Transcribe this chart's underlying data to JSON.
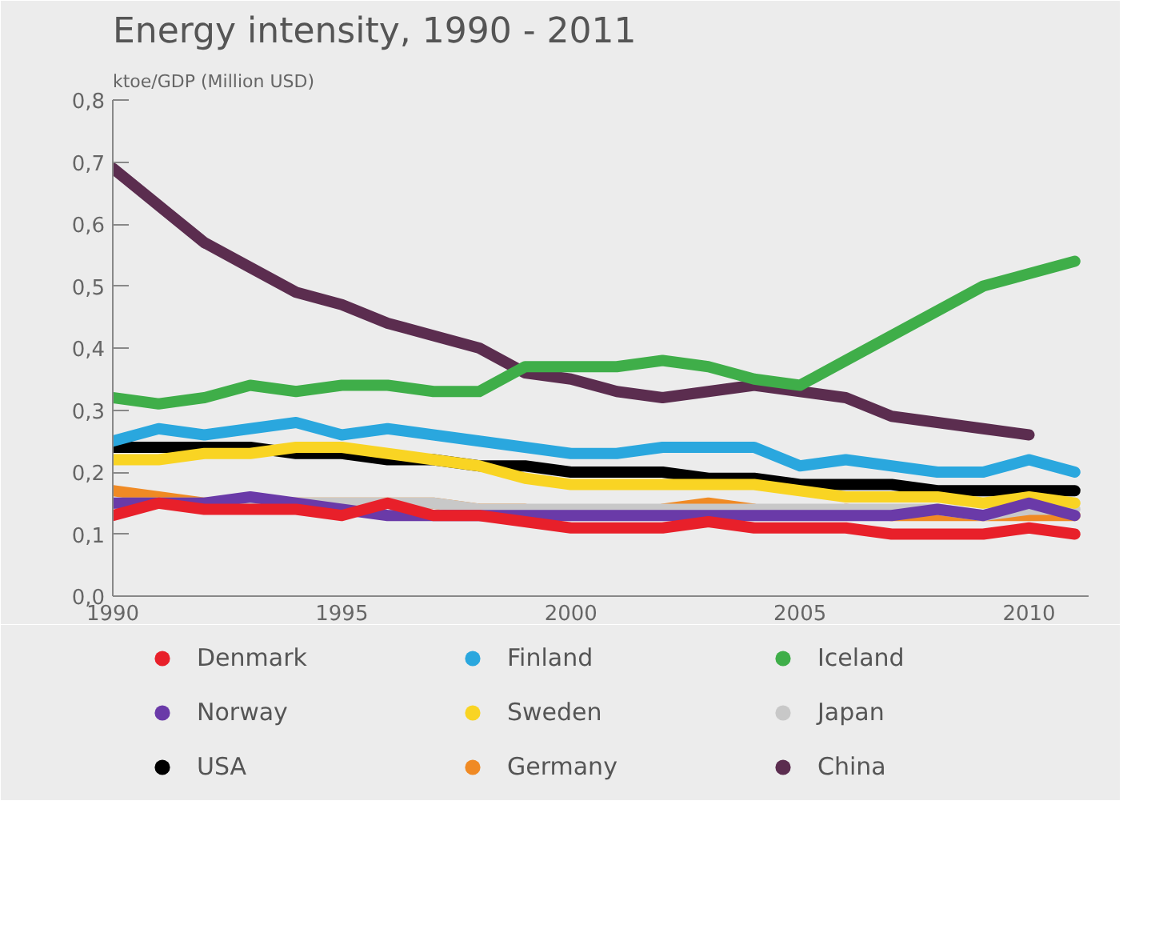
{
  "chart_data": {
    "type": "line",
    "title": "Energy intensity, 1990 - 2011",
    "ylabel": "ktoe/GDP (Million USD)",
    "x": [
      1990,
      1991,
      1992,
      1993,
      1994,
      1995,
      1996,
      1997,
      1998,
      1999,
      2000,
      2001,
      2002,
      2003,
      2004,
      2005,
      2006,
      2007,
      2008,
      2009,
      2010,
      2011
    ],
    "xlim": [
      1990,
      2011.3
    ],
    "xticks": [
      1990,
      1995,
      2000,
      2005,
      2010
    ],
    "ylim": [
      0,
      0.8
    ],
    "yticks": [
      {
        "value": 0,
        "label": "0,0"
      },
      {
        "value": 0.1,
        "label": "0,1"
      },
      {
        "value": 0.2,
        "label": "0,2"
      },
      {
        "value": 0.3,
        "label": "0,3"
      },
      {
        "value": 0.4,
        "label": "0,4"
      },
      {
        "value": 0.5,
        "label": "0,5"
      },
      {
        "value": 0.6,
        "label": "0,6"
      },
      {
        "value": 0.7,
        "label": "0,7"
      },
      {
        "value": 0.8,
        "label": "0,8"
      }
    ],
    "grid": false,
    "legend": "bottom",
    "line_style": "solid",
    "series": [
      {
        "name": "Denmark",
        "color": "#e8202a",
        "values": [
          0.13,
          0.15,
          0.14,
          0.14,
          0.14,
          0.13,
          0.15,
          0.13,
          0.13,
          0.12,
          0.11,
          0.11,
          0.11,
          0.12,
          0.11,
          0.11,
          0.11,
          0.1,
          0.1,
          0.1,
          0.11,
          0.1
        ]
      },
      {
        "name": "Finland",
        "color": "#2aa7de",
        "values": [
          0.25,
          0.27,
          0.26,
          0.27,
          0.28,
          0.26,
          0.27,
          0.26,
          0.25,
          0.24,
          0.23,
          0.23,
          0.24,
          0.24,
          0.24,
          0.21,
          0.22,
          0.21,
          0.2,
          0.2,
          0.22,
          0.2
        ]
      },
      {
        "name": "Iceland",
        "color": "#3fae49",
        "values": [
          0.32,
          0.31,
          0.32,
          0.34,
          0.33,
          0.34,
          0.34,
          0.33,
          0.33,
          0.37,
          0.37,
          0.37,
          0.38,
          0.37,
          0.35,
          0.34,
          0.38,
          0.42,
          0.46,
          0.5,
          0.52,
          0.54
        ]
      },
      {
        "name": "Norway",
        "color": "#6a3aa8",
        "values": [
          0.15,
          0.15,
          0.15,
          0.16,
          0.15,
          0.14,
          0.13,
          0.13,
          0.13,
          0.13,
          0.13,
          0.13,
          0.13,
          0.13,
          0.13,
          0.13,
          0.13,
          0.13,
          0.14,
          0.13,
          0.15,
          0.13
        ]
      },
      {
        "name": "Sweden",
        "color": "#f9d423",
        "values": [
          0.22,
          0.22,
          0.23,
          0.23,
          0.24,
          0.24,
          0.23,
          0.22,
          0.21,
          0.19,
          0.18,
          0.18,
          0.18,
          0.18,
          0.18,
          0.17,
          0.16,
          0.16,
          0.16,
          0.15,
          0.16,
          0.15
        ]
      },
      {
        "name": "Japan",
        "color": "#c8c8c8",
        "values": [
          0.15,
          0.15,
          0.15,
          0.15,
          0.15,
          0.15,
          0.15,
          0.15,
          0.14,
          0.14,
          0.14,
          0.14,
          0.14,
          0.14,
          0.14,
          0.14,
          0.14,
          0.14,
          0.14,
          0.13,
          0.14,
          0.14
        ]
      },
      {
        "name": "USA",
        "color": "#000000",
        "values": [
          0.24,
          0.24,
          0.24,
          0.24,
          0.23,
          0.23,
          0.22,
          0.22,
          0.21,
          0.21,
          0.2,
          0.2,
          0.2,
          0.19,
          0.19,
          0.18,
          0.18,
          0.18,
          0.17,
          0.17,
          0.17,
          0.17
        ]
      },
      {
        "name": "Germany",
        "color": "#f08a24",
        "values": [
          0.17,
          0.16,
          0.15,
          0.15,
          0.15,
          0.15,
          0.15,
          0.15,
          0.14,
          0.14,
          null,
          null,
          0.14,
          0.15,
          0.14,
          null,
          0.14,
          0.13,
          0.13,
          0.13,
          0.13,
          0.13
        ]
      },
      {
        "name": "China",
        "color": "#5b2d4f",
        "values": [
          0.69,
          0.63,
          0.57,
          0.53,
          0.49,
          0.47,
          0.44,
          0.42,
          0.4,
          0.36,
          0.35,
          0.33,
          0.32,
          0.33,
          0.34,
          0.33,
          0.32,
          0.29,
          0.28,
          0.27,
          0.26,
          null
        ]
      }
    ]
  }
}
